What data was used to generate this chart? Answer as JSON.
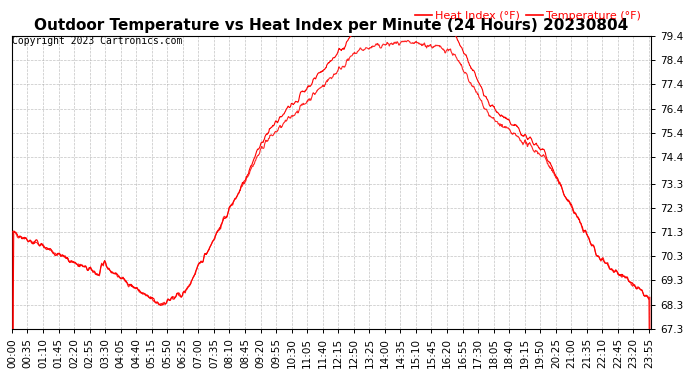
{
  "title": "Outdoor Temperature vs Heat Index per Minute (24 Hours) 20230804",
  "copyright": "Copyright 2023 Cartronics.com",
  "legend_labels": [
    "Heat Index (°F)",
    "Temperature (°F)"
  ],
  "line_color": "red",
  "background_color": "white",
  "grid_color": "#aaaaaa",
  "ylim": [
    67.3,
    79.4
  ],
  "yticks": [
    67.3,
    68.3,
    69.3,
    70.3,
    71.3,
    72.3,
    73.3,
    74.4,
    75.4,
    76.4,
    77.4,
    78.4,
    79.4
  ],
  "xlabel_rotation": 90,
  "title_fontsize": 11,
  "copyright_fontsize": 7,
  "tick_fontsize": 7.5,
  "legend_fontsize": 8
}
